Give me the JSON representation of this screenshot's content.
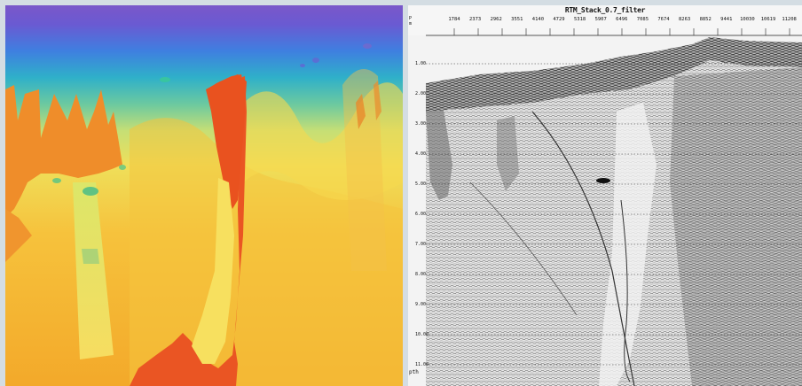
{
  "seismic": {
    "title": "RTM_Stack_0.7_filter",
    "axis_unit_top": "P",
    "axis_unit_bottom": "m",
    "cdp_labels": [
      "1784",
      "2373",
      "2962",
      "3551",
      "4140",
      "4729",
      "5318",
      "5907",
      "6496",
      "7085",
      "7674",
      "8263",
      "8852",
      "9441",
      "10030",
      "10619",
      "11208"
    ],
    "depth_labels": [
      "1.00",
      "2.00",
      "3.00",
      "4.00",
      "5.00",
      "6.00",
      "7.00",
      "8.00",
      "9.00",
      "10.00",
      "11.00"
    ],
    "corner_label": "pth"
  }
}
